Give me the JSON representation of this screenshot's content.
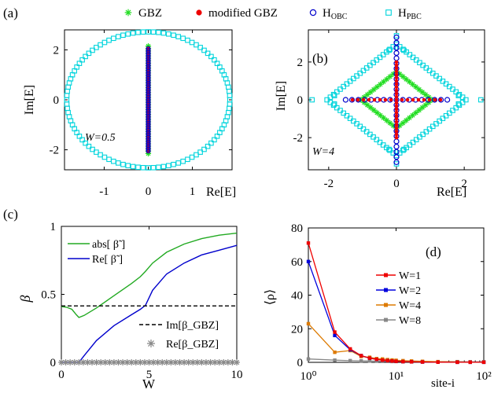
{
  "chart_data": [
    {
      "panel": "(a)",
      "type": "scatter",
      "xlabel": "Re[E]",
      "ylabel": "Im[E]",
      "xlim": [
        -1.9,
        1.9
      ],
      "ylim": [
        -2.8,
        2.8
      ],
      "xticks": [
        "-1",
        "0",
        "1"
      ],
      "xtick_values": [
        -1,
        0,
        1
      ],
      "yticks": [
        "-2",
        "0",
        "2"
      ],
      "ytick_values": [
        -2,
        0,
        2
      ],
      "annotation": "W=0.5",
      "series": [
        {
          "name": "H_PBC",
          "color": "#00d4dc",
          "marker": "square",
          "shape": "ellipse",
          "params": {
            "rx": 1.85,
            "ry": 2.72,
            "n": 100
          }
        },
        {
          "name": "GBZ",
          "color": "#22dd22",
          "marker": "star",
          "shape": "vline",
          "params": {
            "x": 0,
            "ymin": -2.15,
            "ymax": 2.15,
            "n": 45
          }
        },
        {
          "name": "modified GBZ",
          "color": "#ee0000",
          "marker": "dot",
          "shape": "vline",
          "params": {
            "x": 0,
            "ymin": -2.05,
            "ymax": 2.05,
            "n": 80
          }
        },
        {
          "name": "H_OBC",
          "color": "#0000cc",
          "marker": "circle",
          "shape": "vline",
          "params": {
            "x": 0,
            "ymin": -2.05,
            "ymax": 2.05,
            "n": 60
          }
        }
      ]
    },
    {
      "panel": "(b)",
      "type": "scatter",
      "xlabel": "Re[E]",
      "ylabel": "Im[E]",
      "xlim": [
        -2.6,
        2.6
      ],
      "ylim": [
        -3.7,
        3.7
      ],
      "xticks": [
        "-2",
        "0",
        "2"
      ],
      "xtick_values": [
        -2,
        0,
        2
      ],
      "yticks": [
        "-2",
        "0",
        "2"
      ],
      "ytick_values": [
        -2,
        0,
        2
      ],
      "annotation": "W=4",
      "series": [
        {
          "name": "H_PBC",
          "color": "#00d4dc",
          "marker": "square",
          "shape": "diamond",
          "params": {
            "rx": 2.05,
            "ry": 2.95,
            "n": 84,
            "offset": 0.22
          }
        },
        {
          "name": "GBZ",
          "color": "#22dd22",
          "marker": "star",
          "shape": "diamond",
          "params": {
            "rx": 1.05,
            "ry": 1.5,
            "n": 44
          }
        },
        {
          "name": "H_OBC",
          "color": "#0000cc",
          "marker": "circle",
          "shape": "cross",
          "params": {
            "xmax": 1.5,
            "ymax": 3.3
          }
        },
        {
          "name": "modified GBZ",
          "color": "#ee0000",
          "marker": "dot",
          "shape": "cross",
          "params": {
            "xmax": 1.3,
            "ymax": 2.0
          }
        }
      ]
    },
    {
      "panel": "(c)",
      "type": "line",
      "xlabel": "W",
      "ylabel": "β",
      "xlim": [
        0,
        10
      ],
      "ylim": [
        0,
        1
      ],
      "xticks": [
        "0",
        "5",
        "10"
      ],
      "xtick_values": [
        0,
        5,
        10
      ],
      "yticks": [
        "0",
        "0.5",
        "1"
      ],
      "ytick_values": [
        0,
        0.5,
        1
      ],
      "series": [
        {
          "name": "abs[ β̃ ]",
          "color": "#22aa22",
          "x": [
            0,
            0.3,
            0.6,
            0.85,
            1.0,
            1.3,
            2,
            3,
            4,
            4.5,
            4.8,
            5.2,
            6,
            7,
            8,
            9,
            10
          ],
          "y": [
            0.41,
            0.405,
            0.39,
            0.35,
            0.33,
            0.345,
            0.4,
            0.49,
            0.58,
            0.63,
            0.67,
            0.73,
            0.81,
            0.87,
            0.91,
            0.935,
            0.95
          ]
        },
        {
          "name": "Re[ β̃ ]",
          "color": "#0000cc",
          "x": [
            0,
            0.8,
            1.0,
            1.3,
            2,
            3,
            4,
            4.5,
            4.8,
            5.2,
            6,
            7,
            8,
            9,
            10
          ],
          "y": [
            0.0,
            0.0,
            0.0,
            0.05,
            0.16,
            0.27,
            0.35,
            0.39,
            0.42,
            0.53,
            0.65,
            0.73,
            0.79,
            0.825,
            0.86
          ]
        },
        {
          "name": "Im[β_GBZ]",
          "color": "#000000",
          "dash": true,
          "x": [
            0,
            10
          ],
          "y": [
            0.415,
            0.415
          ]
        },
        {
          "name": "Re[β_GBZ]",
          "color": "#888888",
          "marker": "star",
          "x": [
            0,
            0.25,
            0.5,
            0.75,
            1,
            1.25,
            1.5,
            1.75,
            2,
            2.25,
            2.5,
            2.75,
            3,
            3.25,
            3.5,
            3.75,
            4,
            4.25,
            4.5,
            4.75,
            5,
            5.25,
            5.5,
            5.75,
            6,
            6.25,
            6.5,
            6.75,
            7,
            7.25,
            7.5,
            7.75,
            8,
            8.25,
            8.5,
            8.75,
            9,
            9.25,
            9.5,
            9.75,
            10
          ],
          "y": [
            0,
            0,
            0,
            0,
            0,
            0,
            0,
            0,
            0,
            0,
            0,
            0,
            0,
            0,
            0,
            0,
            0,
            0,
            0,
            0,
            0,
            0,
            0,
            0,
            0,
            0,
            0,
            0,
            0,
            0,
            0,
            0,
            0,
            0,
            0,
            0,
            0,
            0,
            0,
            0,
            0
          ]
        }
      ]
    },
    {
      "panel": "(d)",
      "type": "line",
      "xlabel": "site-i",
      "ylabel": "⟨ρ⟩",
      "xscale": "log",
      "xlim": [
        1,
        100
      ],
      "ylim": [
        0,
        80
      ],
      "xticks": [
        "10⁰",
        "10¹",
        "10²"
      ],
      "xtick_values": [
        1,
        10,
        100
      ],
      "yticks": [
        "0",
        "20",
        "40",
        "60",
        "80"
      ],
      "ytick_values": [
        0,
        20,
        40,
        60,
        80
      ],
      "legend": "center-right",
      "series": [
        {
          "name": "W=1",
          "color": "#ee0000",
          "marker": "square",
          "x": [
            1,
            2,
            3,
            4,
            5,
            6,
            7,
            8,
            9,
            10,
            12,
            15,
            20,
            30,
            50,
            70,
            100
          ],
          "y": [
            71,
            18,
            8,
            4,
            2.5,
            1.8,
            1.3,
            1,
            0.8,
            0.6,
            0.4,
            0.3,
            0.2,
            0.1,
            0.05,
            0.05,
            0.05
          ]
        },
        {
          "name": "W=2",
          "color": "#0000dd",
          "marker": "square",
          "x": [
            1,
            2,
            3,
            4,
            5,
            6,
            7,
            8,
            9,
            10,
            12,
            15,
            20,
            30,
            50,
            70,
            100
          ],
          "y": [
            60,
            16,
            7.5,
            4,
            2.5,
            1.8,
            1.3,
            1,
            0.8,
            0.6,
            0.4,
            0.3,
            0.2,
            0.1,
            0.05,
            0.05,
            0.05
          ]
        },
        {
          "name": "W=4",
          "color": "#dd7a00",
          "marker": "square",
          "x": [
            1,
            2,
            3,
            4,
            5,
            6,
            7,
            8,
            9,
            10,
            12,
            15,
            20,
            30,
            50,
            70,
            100
          ],
          "y": [
            23,
            6,
            7,
            3.5,
            3,
            2.2,
            2,
            1.6,
            1.4,
            1.2,
            1,
            0.8,
            0.6,
            0.4,
            0.3,
            0.2,
            0.2
          ]
        },
        {
          "name": "W=8",
          "color": "#888888",
          "marker": "square",
          "x": [
            1,
            2,
            3,
            4,
            5,
            6,
            7,
            8,
            9,
            10,
            12,
            15,
            20,
            30,
            50,
            70,
            100
          ],
          "y": [
            2,
            1.3,
            1,
            0.9,
            0.8,
            0.7,
            0.6,
            0.6,
            0.5,
            0.5,
            0.5,
            0.4,
            0.4,
            0.4,
            0.4,
            0.3,
            0.3
          ]
        }
      ]
    }
  ],
  "legend": {
    "items": [
      {
        "label": "GBZ",
        "color": "#22dd22",
        "marker": "star"
      },
      {
        "label": "modified GBZ",
        "color": "#ee0000",
        "marker": "dot"
      },
      {
        "label": "H",
        "sub": "OBC",
        "color": "#0000cc",
        "marker": "circle"
      },
      {
        "label": "H",
        "sub": "PBC",
        "color": "#00d4dc",
        "marker": "square"
      }
    ]
  }
}
